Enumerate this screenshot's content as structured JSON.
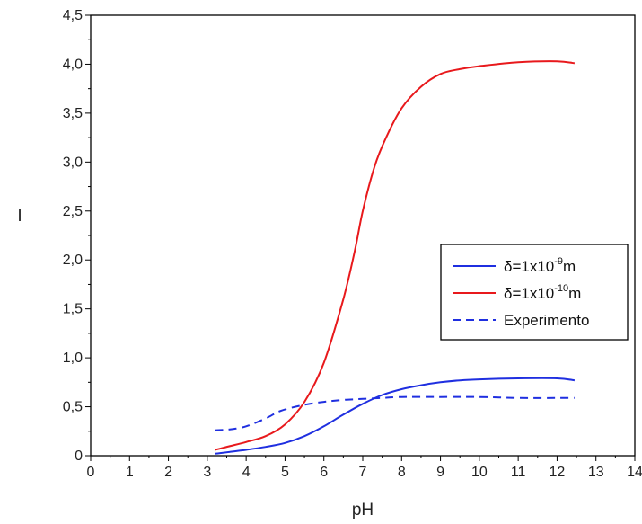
{
  "chart_data": {
    "type": "line",
    "title": "",
    "xlabel": "pH",
    "ylabel": "I",
    "xlim": [
      0,
      14
    ],
    "ylim": [
      0,
      4.5
    ],
    "x_ticks": [
      "0",
      "1",
      "2",
      "3",
      "4",
      "5",
      "6",
      "7",
      "8",
      "9",
      "10",
      "11",
      "12",
      "13",
      "14"
    ],
    "y_ticks": [
      "0",
      "0,5",
      "1,0",
      "1,5",
      "2,0",
      "2,5",
      "3,0",
      "3,5",
      "4,0",
      "4,5"
    ],
    "grid": false,
    "legend_position": "center-right",
    "series": [
      {
        "name": "δ=1x10-9m",
        "legend": {
          "prefix": "δ=1x10",
          "sup": "-9",
          "suffix": "m"
        },
        "color": "#1f2fe0",
        "style": "solid",
        "points": [
          [
            3.2,
            0.02
          ],
          [
            3.6,
            0.04
          ],
          [
            4.0,
            0.06
          ],
          [
            4.5,
            0.09
          ],
          [
            5.0,
            0.13
          ],
          [
            5.5,
            0.2
          ],
          [
            6.0,
            0.3
          ],
          [
            6.5,
            0.42
          ],
          [
            7.0,
            0.53
          ],
          [
            7.5,
            0.62
          ],
          [
            8.0,
            0.68
          ],
          [
            8.5,
            0.72
          ],
          [
            9.0,
            0.75
          ],
          [
            9.5,
            0.77
          ],
          [
            10.0,
            0.78
          ],
          [
            11.0,
            0.79
          ],
          [
            12.0,
            0.79
          ],
          [
            12.45,
            0.77
          ]
        ]
      },
      {
        "name": "δ=1x10-10m",
        "legend": {
          "prefix": "δ=1x10",
          "sup": "-10",
          "suffix": "m"
        },
        "color": "#e8191c",
        "style": "solid",
        "points": [
          [
            3.2,
            0.06
          ],
          [
            3.6,
            0.1
          ],
          [
            4.0,
            0.14
          ],
          [
            4.5,
            0.2
          ],
          [
            5.0,
            0.32
          ],
          [
            5.5,
            0.55
          ],
          [
            6.0,
            0.95
          ],
          [
            6.5,
            1.6
          ],
          [
            6.8,
            2.1
          ],
          [
            7.0,
            2.5
          ],
          [
            7.3,
            2.95
          ],
          [
            7.6,
            3.25
          ],
          [
            8.0,
            3.55
          ],
          [
            8.5,
            3.77
          ],
          [
            9.0,
            3.9
          ],
          [
            9.5,
            3.95
          ],
          [
            10.0,
            3.98
          ],
          [
            11.0,
            4.02
          ],
          [
            12.0,
            4.03
          ],
          [
            12.45,
            4.01
          ]
        ]
      },
      {
        "name": "Experimento",
        "legend": {
          "prefix": "Experimento",
          "sup": "",
          "suffix": ""
        },
        "color": "#1f2fe0",
        "style": "dashed",
        "points": [
          [
            3.2,
            0.26
          ],
          [
            3.6,
            0.27
          ],
          [
            4.0,
            0.3
          ],
          [
            4.5,
            0.38
          ],
          [
            4.9,
            0.46
          ],
          [
            5.5,
            0.52
          ],
          [
            6.0,
            0.55
          ],
          [
            6.5,
            0.57
          ],
          [
            7.0,
            0.58
          ],
          [
            7.5,
            0.59
          ],
          [
            8.0,
            0.6
          ],
          [
            9.0,
            0.6
          ],
          [
            10.0,
            0.6
          ],
          [
            11.0,
            0.59
          ],
          [
            12.0,
            0.59
          ],
          [
            12.45,
            0.59
          ]
        ]
      }
    ]
  }
}
